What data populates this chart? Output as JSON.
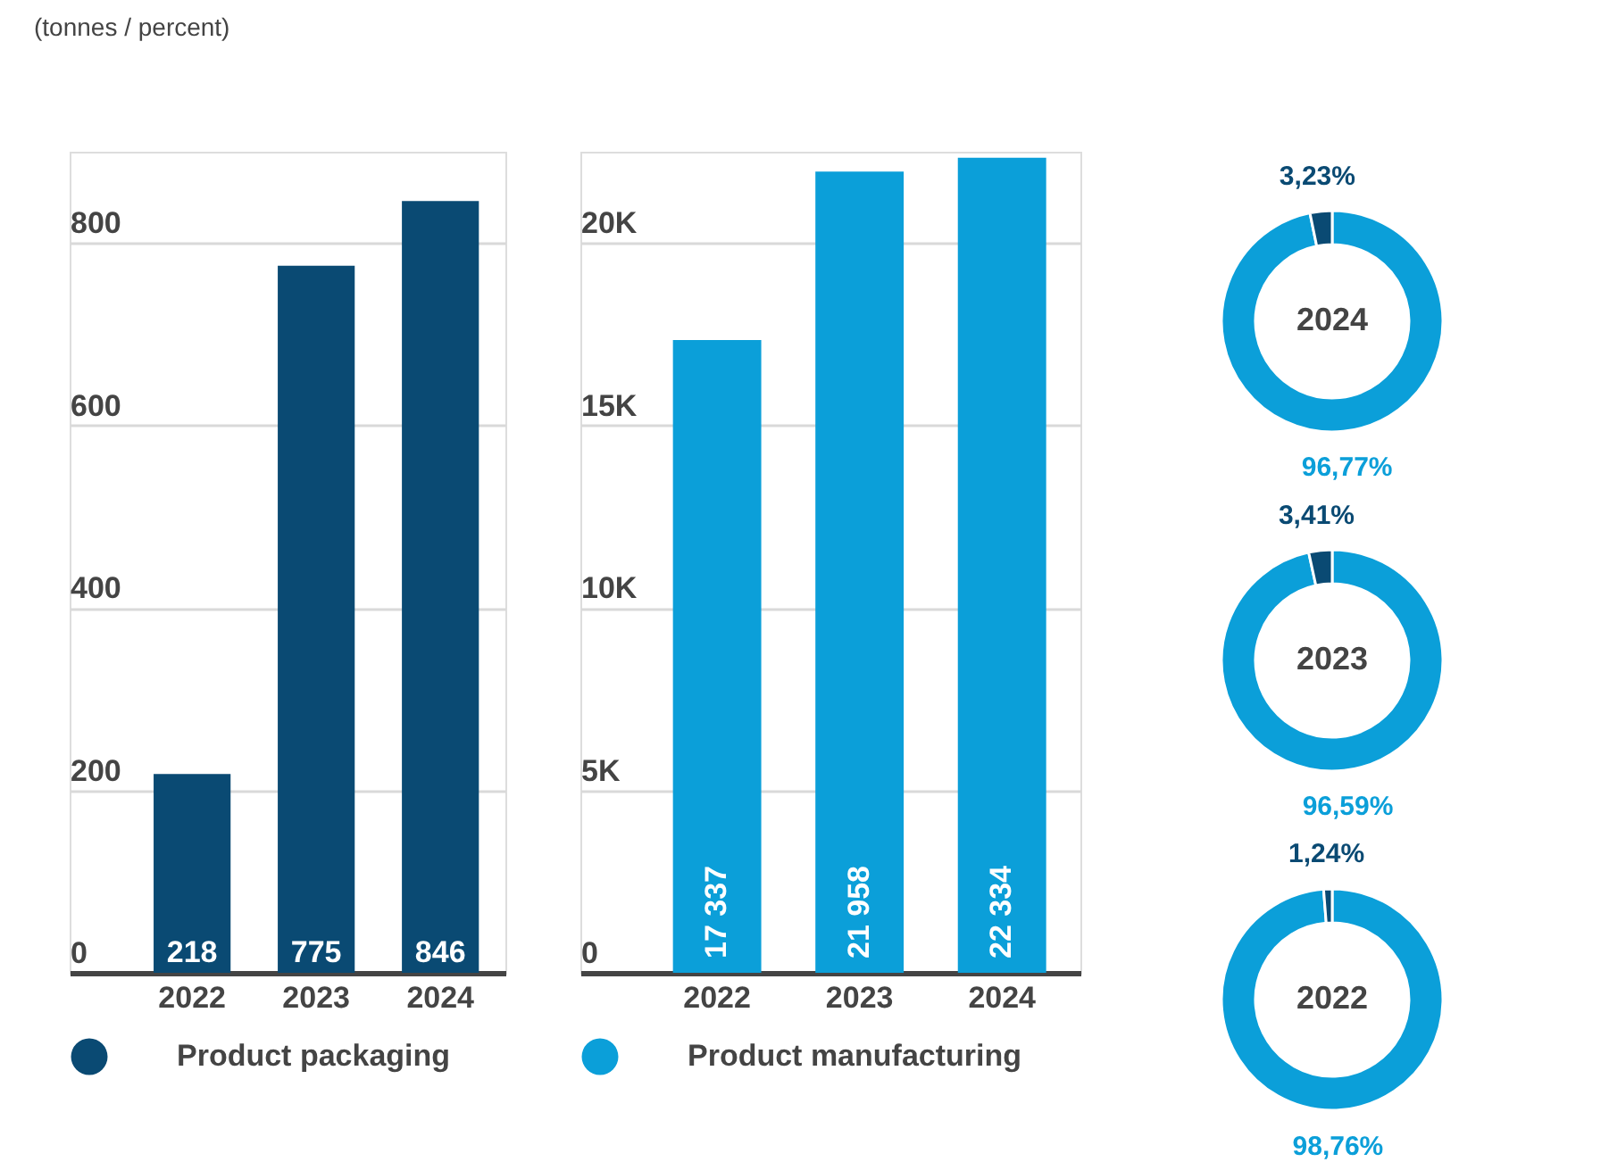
{
  "chart_data": [
    {
      "type": "bar",
      "title": "(tonnes / percent)",
      "categories": [
        "2022",
        "2023",
        "2024"
      ],
      "series": [
        {
          "name": "Product packaging",
          "color": "#0a4a73",
          "values": [
            218,
            775,
            846
          ]
        }
      ],
      "ylim": [
        0,
        900
      ],
      "yticks": [
        0,
        200,
        400,
        600,
        800
      ],
      "grid": "y",
      "data_labels": true,
      "legend": "bottom"
    },
    {
      "type": "bar",
      "categories": [
        "2022",
        "2023",
        "2024"
      ],
      "series": [
        {
          "name": "Product manufacturing",
          "color": "#0b9fd9",
          "values": [
            17337,
            21958,
            22334
          ],
          "value_labels": [
            "17 337",
            "21 958",
            "22 334"
          ]
        }
      ],
      "ylim": [
        0,
        22500
      ],
      "yticks": [
        0,
        {
          "value": 5000,
          "label": "5K"
        },
        {
          "value": 10000,
          "label": "10K"
        },
        {
          "value": 15000,
          "label": "15K"
        },
        {
          "value": 20000,
          "label": "20K"
        }
      ],
      "grid": "y",
      "legend": "bottom"
    },
    {
      "type": "donut",
      "title": "2024",
      "categories": [
        null,
        null
      ],
      "values": [
        96.77,
        3.23
      ],
      "colors": [
        "#0b9fd9",
        "#0a4a73"
      ],
      "value_labels": [
        "96,77%",
        "3,23%"
      ]
    },
    {
      "type": "donut",
      "title": "2023",
      "categories": [
        null,
        null
      ],
      "values": [
        96.59,
        3.41
      ],
      "colors": [
        "#0b9fd9",
        "#0a4a73"
      ],
      "value_labels": [
        "96,59%",
        "3,41%"
      ]
    },
    {
      "type": "donut",
      "title": "2022",
      "categories": [
        null,
        null
      ],
      "values": [
        98.76,
        1.24
      ],
      "colors": [
        "#0b9fd9",
        "#0a4a73"
      ],
      "value_labels": [
        "98,76%",
        "1,24%"
      ]
    }
  ]
}
